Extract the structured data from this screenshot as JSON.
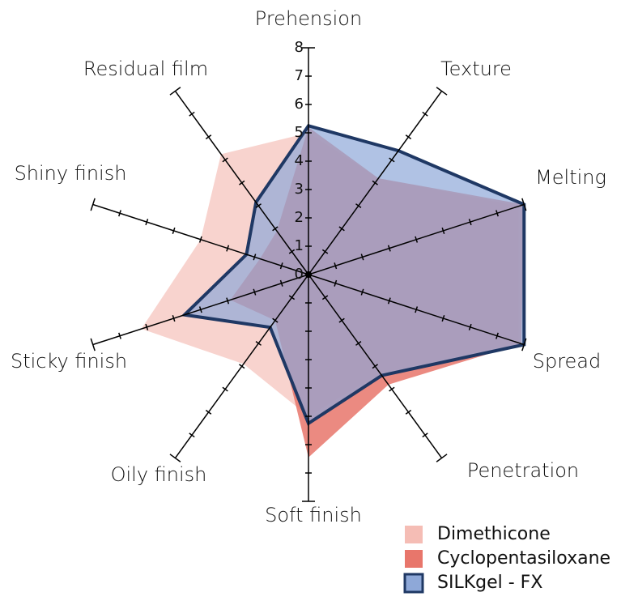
{
  "chart_data": {
    "type": "radar",
    "categories": [
      "Prehension",
      "Texture",
      "Melting",
      "Spread",
      "Penetration",
      "Soft finish",
      "Oily finish",
      "Sticky finish",
      "Shiny finish",
      "Residual film"
    ],
    "series": [
      {
        "name": "Dimethicone",
        "color": "#f4b6ad",
        "values": [
          5.0,
          4.2,
          7.8,
          7.8,
          4.3,
          5.0,
          3.9,
          6.2,
          4.0,
          5.25
        ]
      },
      {
        "name": "Cyclopentasiloxane",
        "color": "#e8766b",
        "values": [
          5.2,
          4.2,
          8.0,
          7.9,
          4.8,
          6.45,
          2.0,
          2.9,
          1.8,
          1.9
        ]
      },
      {
        "name": "SILKgel - FX",
        "color": "#8ea8d8",
        "values": [
          5.25,
          5.4,
          8.0,
          8.0,
          4.4,
          5.25,
          2.3,
          4.6,
          2.3,
          3.15
        ]
      }
    ],
    "rlim": [
      0,
      8
    ],
    "rticks": [
      0,
      1,
      2,
      3,
      4,
      5,
      6,
      7,
      8
    ]
  }
}
